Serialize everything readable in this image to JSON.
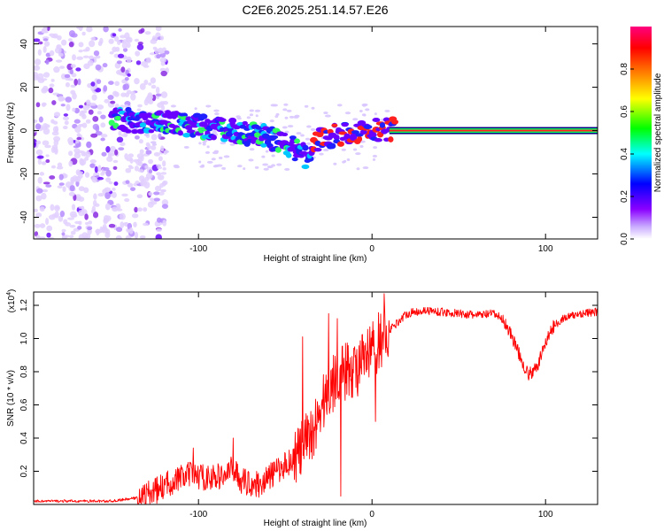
{
  "title": "C2E6.2025.251.14.57.E26",
  "chart_data": [
    {
      "type": "heatmap",
      "xlabel": "Height of straight line (km)",
      "ylabel": "Frequency (Hz)",
      "xlim": [
        -195,
        130
      ],
      "ylim": [
        -50,
        48
      ],
      "xticks": [
        -100,
        0,
        100
      ],
      "yticks": [
        -40,
        -20,
        0,
        20,
        40
      ],
      "xtick_labels": [
        "-100",
        "0",
        "100"
      ],
      "ytick_labels": [
        "-40",
        "-20",
        "0",
        "20",
        "40"
      ],
      "colorbar": {
        "label": "Normalized spectral amplitude",
        "range": [
          0,
          1
        ],
        "ticks": [
          0.0,
          0.2,
          0.4,
          0.6,
          0.8
        ],
        "tick_labels": [
          "0.0",
          "0.2",
          "0.4",
          "0.6",
          "0.8"
        ],
        "colors": [
          "#ffffff",
          "#8a00ff",
          "#0000ff",
          "#00ffff",
          "#00ff00",
          "#ffff00",
          "#ff8000",
          "#ff0000",
          "#ff0080"
        ]
      },
      "features": {
        "noise_region_x": [
          -195,
          -130
        ],
        "signal_track": [
          {
            "x": -150,
            "y": 5
          },
          {
            "x": -120,
            "y": 4
          },
          {
            "x": -100,
            "y": 2
          },
          {
            "x": -80,
            "y": 0
          },
          {
            "x": -60,
            "y": -3
          },
          {
            "x": -45,
            "y": -8
          },
          {
            "x": -38,
            "y": -12
          },
          {
            "x": -30,
            "y": -4
          },
          {
            "x": -15,
            "y": -1
          },
          {
            "x": 0,
            "y": 0
          },
          {
            "x": 15,
            "y": 1
          }
        ],
        "carrier_line": {
          "x_start": 10,
          "x_end": 130,
          "y": 0
        }
      }
    },
    {
      "type": "line",
      "xlabel": "Height of straight line (km)",
      "ylabel": "SNR (10 * v/v)",
      "multiplier_label": "(x10",
      "multiplier_exp": "4",
      "multiplier_close": ")",
      "xlim": [
        -195,
        130
      ],
      "ylim": [
        0,
        1.28
      ],
      "xticks": [
        -100,
        0,
        100
      ],
      "yticks": [
        0.2,
        0.4,
        0.6,
        0.8,
        1.0,
        1.2
      ],
      "xtick_labels": [
        "-100",
        "0",
        "100"
      ],
      "ytick_labels": [
        "0.2",
        "0.4",
        "0.6",
        "0.8",
        "1.0",
        "1.2"
      ],
      "color": "#ff0000",
      "series": [
        {
          "name": "SNR",
          "points": [
            [
              -195,
              0.02
            ],
            [
              -170,
              0.02
            ],
            [
              -150,
              0.02
            ],
            [
              -135,
              0.04
            ],
            [
              -125,
              0.08
            ],
            [
              -115,
              0.14
            ],
            [
              -105,
              0.18
            ],
            [
              -95,
              0.16
            ],
            [
              -85,
              0.17
            ],
            [
              -80,
              0.22
            ],
            [
              -75,
              0.14
            ],
            [
              -65,
              0.12
            ],
            [
              -55,
              0.2
            ],
            [
              -45,
              0.28
            ],
            [
              -40,
              0.34
            ],
            [
              -35,
              0.42
            ],
            [
              -30,
              0.58
            ],
            [
              -25,
              0.68
            ],
            [
              -20,
              0.78
            ],
            [
              -15,
              0.8
            ],
            [
              -10,
              0.82
            ],
            [
              -5,
              0.85
            ],
            [
              0,
              0.92
            ],
            [
              5,
              1.0
            ],
            [
              10,
              1.05
            ],
            [
              15,
              1.1
            ],
            [
              20,
              1.15
            ],
            [
              30,
              1.17
            ],
            [
              40,
              1.16
            ],
            [
              50,
              1.15
            ],
            [
              60,
              1.14
            ],
            [
              70,
              1.15
            ],
            [
              75,
              1.12
            ],
            [
              80,
              1.03
            ],
            [
              85,
              0.9
            ],
            [
              90,
              0.78
            ],
            [
              95,
              0.82
            ],
            [
              100,
              0.98
            ],
            [
              105,
              1.08
            ],
            [
              110,
              1.12
            ],
            [
              120,
              1.15
            ],
            [
              130,
              1.16
            ]
          ],
          "spikes": [
            {
              "x": -103,
              "y": 0.34
            },
            {
              "x": -80,
              "y": 0.4
            },
            {
              "x": -40,
              "y": 1.01
            },
            {
              "x": -32,
              "y": 0.48
            },
            {
              "x": -25,
              "y": 1.15
            },
            {
              "x": -20,
              "y": 1.12
            },
            {
              "x": -18,
              "y": 0.05
            },
            {
              "x": -10,
              "y": 0.95
            },
            {
              "x": 7,
              "y": 1.27
            },
            {
              "x": 2,
              "y": 0.5
            }
          ]
        }
      ]
    }
  ]
}
